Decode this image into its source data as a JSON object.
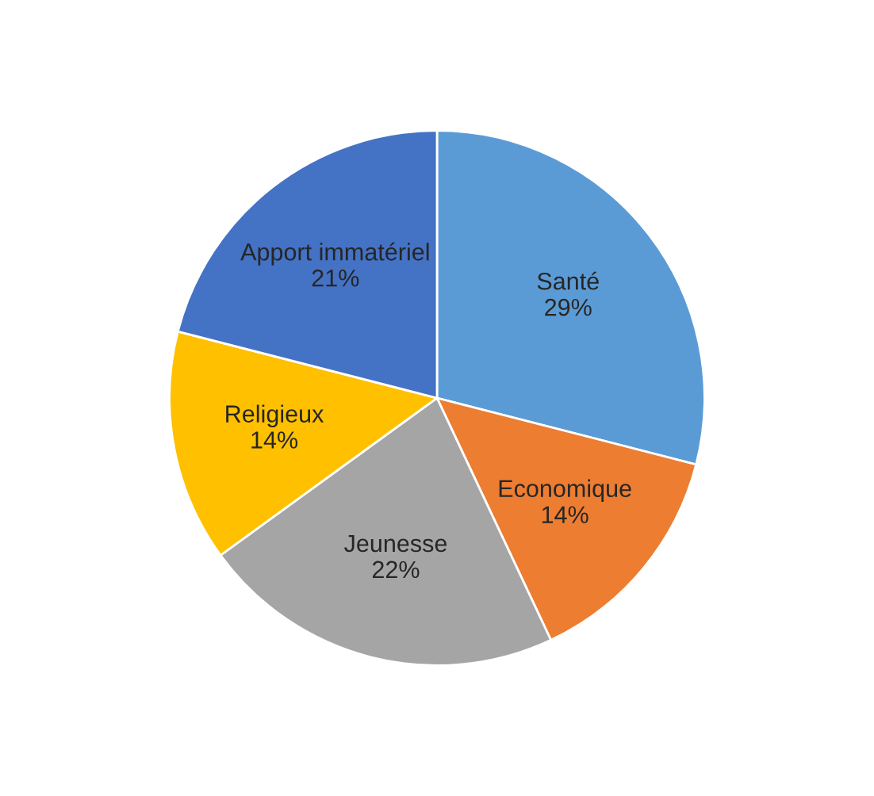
{
  "chart_data": {
    "type": "pie",
    "categories": [
      "Santé",
      "Economique",
      "Jeunesse",
      "Religieux",
      "Apport immatériel"
    ],
    "values": [
      29,
      14,
      22,
      14,
      21
    ],
    "colors": [
      "#5b9bd5",
      "#ed7d31",
      "#a5a5a5",
      "#ffc000",
      "#4472c4"
    ],
    "value_labels": [
      "29%",
      "14%",
      "22%",
      "14%",
      "21%"
    ],
    "legend": false
  }
}
